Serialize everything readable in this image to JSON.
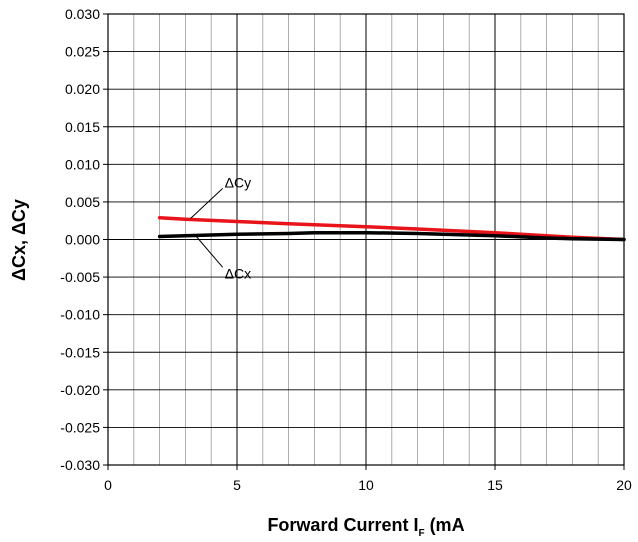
{
  "chart_data": {
    "type": "line",
    "title": "",
    "xlabel": {
      "main": "Forward Current I",
      "sub": "F",
      "tail": " (mA"
    },
    "ylabel": "ΔCx, ΔCy",
    "xlim": [
      0,
      20
    ],
    "ylim": [
      -0.03,
      0.03
    ],
    "x_ticks": [
      "0",
      "5",
      "10",
      "15",
      "20"
    ],
    "y_ticks": [
      "0.030",
      "0.025",
      "0.020",
      "0.015",
      "0.010",
      "0.005",
      "0.000",
      "-0.005",
      "-0.010",
      "-0.015",
      "-0.020",
      "-0.025",
      "-0.030"
    ],
    "grid": true,
    "series": [
      {
        "name": "ΔCy",
        "color": "#e8141a",
        "x": [
          2,
          3,
          5,
          7,
          10,
          12,
          15,
          17,
          18,
          20
        ],
        "y": [
          0.0029,
          0.0027,
          0.0024,
          0.0021,
          0.0017,
          0.0014,
          0.0009,
          0.0005,
          0.0003,
          0.0
        ]
      },
      {
        "name": "ΔCx",
        "color": "#000000",
        "x": [
          2,
          3,
          5,
          7,
          8,
          10,
          12,
          15,
          17,
          18,
          20
        ],
        "y": [
          0.0004,
          0.0005,
          0.0007,
          0.0008,
          0.0009,
          0.0009,
          0.0008,
          0.0005,
          0.0002,
          0.0001,
          0.0
        ]
      }
    ],
    "annotations": [
      {
        "label": "ΔCy",
        "series": "ΔCy",
        "anchor_x": 3.2,
        "anchor_y": 0.0028,
        "text_x": 4.6,
        "text_y": 0.0076
      },
      {
        "label": "ΔCx",
        "series": "ΔCx",
        "anchor_x": 3.4,
        "anchor_y": 0.0005,
        "text_x": 4.6,
        "text_y": -0.0045
      }
    ]
  }
}
